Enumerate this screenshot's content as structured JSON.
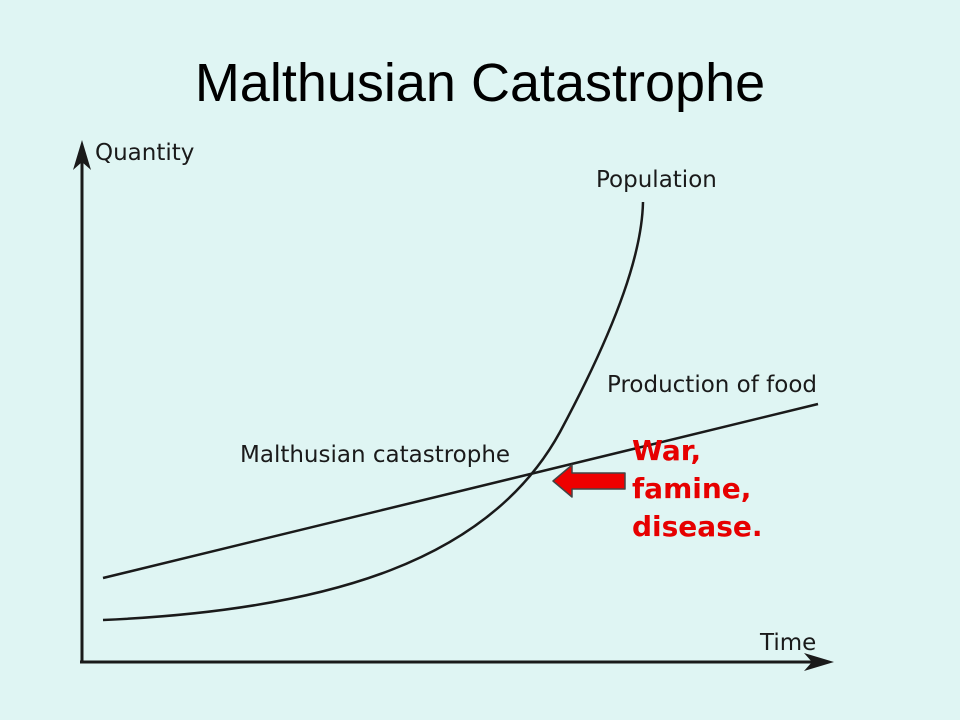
{
  "slide": {
    "title": "Malthusian Catastrophe"
  },
  "diagram": {
    "y_axis_label": "Quantity",
    "x_axis_label": "Time",
    "curves": {
      "population": "Population",
      "food": "Production of food"
    },
    "catastrophe_label": "Malthusian catastrophe",
    "effects": [
      "War,",
      "famine,",
      "disease."
    ],
    "colors": {
      "background": "#dff5f3",
      "lines": "#1a1a1a",
      "effects_text": "#e60000",
      "arrow": "#ee0000"
    },
    "arrow_icon": "left-arrow-icon"
  }
}
